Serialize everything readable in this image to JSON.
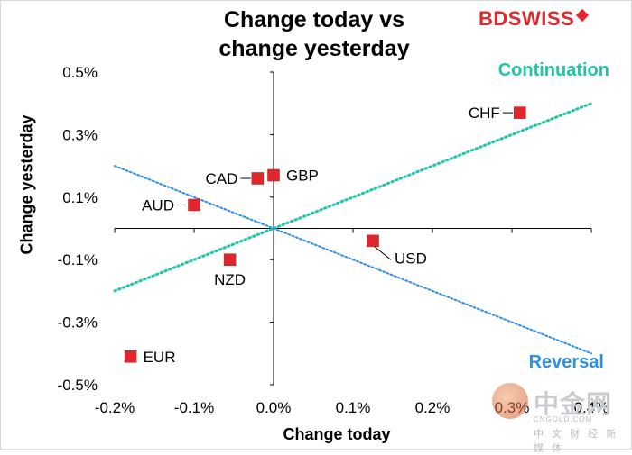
{
  "chart_data": {
    "type": "scatter",
    "title_lines": [
      "Change today vs",
      "change yesterday"
    ],
    "brand": "BDSWISS",
    "xlabel": "Change today",
    "ylabel": "Change yesterday",
    "xlim": [
      -0.2,
      0.4
    ],
    "ylim": [
      -0.5,
      0.5
    ],
    "x_tick_labels": [
      {
        "value": -0.2,
        "label": "-0.2%"
      },
      {
        "value": -0.1,
        "label": "-0.1%"
      },
      {
        "value": 0.0,
        "label": "0.0%"
      },
      {
        "value": 0.1,
        "label": "0.1%"
      },
      {
        "value": 0.2,
        "label": "0.2%"
      },
      {
        "value": 0.3,
        "label": "0.3%"
      },
      {
        "value": 0.4,
        "label": "0.4%"
      }
    ],
    "y_tick_labels": [
      {
        "value": 0.5,
        "label": "0.5%"
      },
      {
        "value": 0.3,
        "label": "0.3%"
      },
      {
        "value": 0.1,
        "label": "0.1%"
      },
      {
        "value": -0.1,
        "label": "-0.1%"
      },
      {
        "value": -0.3,
        "label": "-0.3%"
      },
      {
        "value": -0.5,
        "label": "-0.5%"
      }
    ],
    "points": [
      {
        "name": "CHF",
        "x": 0.31,
        "y": 0.37,
        "label_pos": "left"
      },
      {
        "name": "GBP",
        "x": 0.0,
        "y": 0.17,
        "label_pos": "right"
      },
      {
        "name": "CAD",
        "x": -0.02,
        "y": 0.16,
        "label_pos": "left"
      },
      {
        "name": "AUD",
        "x": -0.1,
        "y": 0.075,
        "label_pos": "left"
      },
      {
        "name": "USD",
        "x": 0.125,
        "y": -0.04,
        "label_pos": "below-right"
      },
      {
        "name": "NZD",
        "x": -0.055,
        "y": -0.1,
        "label_pos": "below"
      },
      {
        "name": "EUR",
        "x": -0.18,
        "y": -0.41,
        "label_pos": "right"
      }
    ],
    "trendlines": [
      {
        "name": "Continuation",
        "from": [
          -0.2,
          -0.2
        ],
        "to": [
          0.4,
          0.4
        ],
        "color": "#1fc6a6"
      },
      {
        "name": "Reversal",
        "from": [
          -0.2,
          0.2
        ],
        "to": [
          0.4,
          -0.4
        ],
        "color": "#2f8fe6"
      }
    ],
    "annotations": [
      {
        "text": "Continuation",
        "color": "#1fc6a6"
      },
      {
        "text": "Reversal",
        "color": "#2f8fe6"
      }
    ],
    "marker_color": "#e0262d"
  },
  "watermark": {
    "main": "中金网",
    "sub": "CNGOLD.COM",
    "cn": "中 文 财 经 新 媒 体"
  }
}
